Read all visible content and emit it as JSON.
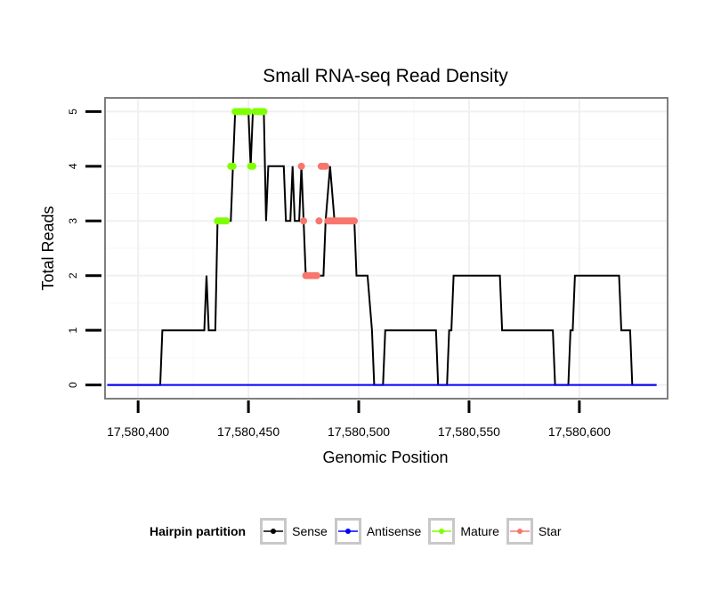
{
  "chart_data": {
    "type": "line",
    "title": "Small RNA-seq Read Density",
    "xlabel": "Genomic Position",
    "ylabel": "Total Reads",
    "xlim": [
      17580385,
      17580640
    ],
    "ylim": [
      -0.25,
      5.25
    ],
    "xticks": [
      17580400,
      17580450,
      17580500,
      17580550,
      17580600
    ],
    "xtick_labels": [
      "17,580,400",
      "17,580,450",
      "17,580,500",
      "17,580,550",
      "17,580,600"
    ],
    "yticks": [
      0,
      1,
      2,
      3,
      4,
      5
    ],
    "ytick_labels": [
      "0",
      "1",
      "2",
      "3",
      "4",
      "5"
    ],
    "legend": {
      "title": "Hairpin partition",
      "position": "bottom",
      "entries": [
        "Sense",
        "Antisense",
        "Mature",
        "Star"
      ]
    },
    "series": [
      {
        "name": "Sense",
        "color": "#000000",
        "x": [
          17580386,
          17580410,
          17580411,
          17580430,
          17580431,
          17580432,
          17580433,
          17580435,
          17580436,
          17580442,
          17580443,
          17580444,
          17580450,
          17580451,
          17580452,
          17580453,
          17580454,
          17580457,
          17580458,
          17580459,
          17580466,
          17580467,
          17580469,
          17580470,
          17580471,
          17580473,
          17580474,
          17580475,
          17580476,
          17580477,
          17580478,
          17580484,
          17580485,
          17580487,
          17580489,
          17580490,
          17580498,
          17580499,
          17580504,
          17580506,
          17580507,
          17580511,
          17580512,
          17580535,
          17580536,
          17580540,
          17580541,
          17580542,
          17580543,
          17580564,
          17580565,
          17580588,
          17580589,
          17580595,
          17580596,
          17580597,
          17580598,
          17580618,
          17580619,
          17580623,
          17580624,
          17580635
        ],
        "y": [
          0,
          0,
          1,
          1,
          2,
          1,
          1,
          1,
          3,
          3,
          4,
          5,
          5,
          4,
          5,
          5,
          5,
          5,
          3,
          4,
          4,
          3,
          3,
          4,
          3,
          3,
          4,
          3,
          2,
          2,
          2,
          2,
          3,
          4,
          3,
          3,
          3,
          2,
          2,
          1,
          0,
          0,
          1,
          1,
          0,
          0,
          1,
          1,
          2,
          2,
          1,
          1,
          0,
          0,
          1,
          1,
          2,
          2,
          1,
          1,
          0,
          0
        ]
      },
      {
        "name": "Antisense",
        "color": "#0000ff",
        "x": [
          17580386,
          17580635
        ],
        "y": [
          0,
          0
        ]
      },
      {
        "name": "Mature",
        "color": "#7fff00",
        "x": [
          17580436,
          17580437,
          17580438,
          17580439,
          17580440,
          17580442,
          17580443,
          17580444,
          17580445,
          17580446,
          17580447,
          17580448,
          17580449,
          17580450,
          17580451,
          17580452,
          17580453,
          17580454,
          17580455,
          17580456,
          17580457
        ],
        "y": [
          3,
          3,
          3,
          3,
          3,
          4,
          4,
          5,
          5,
          5,
          5,
          5,
          5,
          5,
          4,
          4,
          5,
          5,
          5,
          5,
          5
        ]
      },
      {
        "name": "Star",
        "color": "#f8766d",
        "x": [
          17580474,
          17580475,
          17580476,
          17580477,
          17580478,
          17580479,
          17580480,
          17580481,
          17580482,
          17580483,
          17580484,
          17580485,
          17580486,
          17580487,
          17580488,
          17580489,
          17580490,
          17580491,
          17580492,
          17580493,
          17580494,
          17580495,
          17580496,
          17580497,
          17580498
        ],
        "y": [
          4,
          3,
          2,
          2,
          2,
          2,
          2,
          2,
          3,
          4,
          4,
          4,
          3,
          3,
          3,
          3,
          3,
          3,
          3,
          3,
          3,
          3,
          3,
          3,
          3
        ]
      }
    ]
  }
}
